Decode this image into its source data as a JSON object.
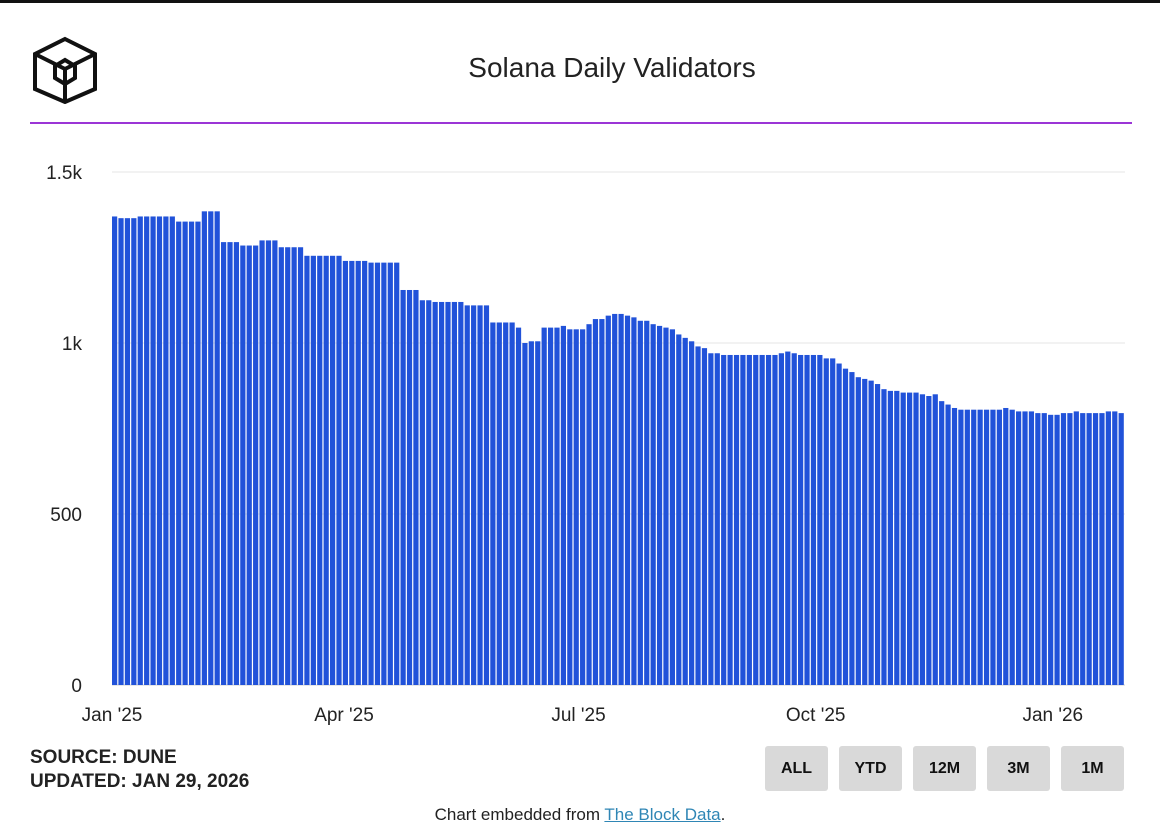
{
  "header": {
    "logo_icon": "the-block-cube-logo",
    "accent_color": "#9b35d6"
  },
  "chart_data": {
    "type": "bar",
    "title": "Solana Daily Validators",
    "xlabel": "",
    "ylabel": "",
    "ylim": [
      0,
      1500
    ],
    "yticks": [
      0,
      500,
      1000,
      1500
    ],
    "ytick_labels": [
      "0",
      "500",
      "1k",
      "1.5k"
    ],
    "xticks": [
      "2025-01-01",
      "2025-04-01",
      "2025-07-01",
      "2025-10-01",
      "2026-01-01"
    ],
    "xtick_labels": [
      "Jan '25",
      "Apr '25",
      "Jul '25",
      "Oct '25",
      "Jan '26"
    ],
    "grid": true,
    "bar_color": "#2152d9",
    "start_date": "2025-01-01",
    "end_date": "2026-01-29",
    "values": [
      1370,
      1365,
      1365,
      1365,
      1370,
      1370,
      1370,
      1370,
      1370,
      1370,
      1355,
      1355,
      1355,
      1355,
      1385,
      1385,
      1385,
      1295,
      1295,
      1295,
      1285,
      1285,
      1285,
      1300,
      1300,
      1300,
      1280,
      1280,
      1280,
      1280,
      1255,
      1255,
      1255,
      1255,
      1255,
      1255,
      1240,
      1240,
      1240,
      1240,
      1235,
      1235,
      1235,
      1235,
      1235,
      1155,
      1155,
      1155,
      1125,
      1125,
      1120,
      1120,
      1120,
      1120,
      1120,
      1110,
      1110,
      1110,
      1110,
      1060,
      1060,
      1060,
      1060,
      1045,
      1000,
      1005,
      1005,
      1045,
      1045,
      1045,
      1050,
      1040,
      1040,
      1040,
      1055,
      1070,
      1070,
      1080,
      1085,
      1085,
      1080,
      1075,
      1065,
      1065,
      1055,
      1050,
      1045,
      1040,
      1025,
      1015,
      1005,
      990,
      985,
      970,
      970,
      965,
      965,
      965,
      965,
      965,
      965,
      965,
      965,
      965,
      970,
      975,
      970,
      965,
      965,
      965,
      965,
      955,
      955,
      940,
      925,
      915,
      900,
      895,
      890,
      880,
      865,
      860,
      860,
      855,
      855,
      855,
      850,
      845,
      850,
      830,
      820,
      810,
      805,
      805,
      805,
      805,
      805,
      805,
      805,
      810,
      805,
      800,
      800,
      800,
      795,
      795,
      790,
      790,
      795,
      795,
      800,
      795,
      795,
      795,
      795,
      800,
      800,
      795
    ]
  },
  "footer": {
    "source": "SOURCE: DUNE",
    "updated": "UPDATED: JAN 29, 2026",
    "embed_prefix": "Chart embedded from ",
    "embed_link": "The Block Data",
    "embed_suffix": "."
  },
  "range_buttons": [
    "ALL",
    "YTD",
    "12M",
    "3M",
    "1M"
  ]
}
